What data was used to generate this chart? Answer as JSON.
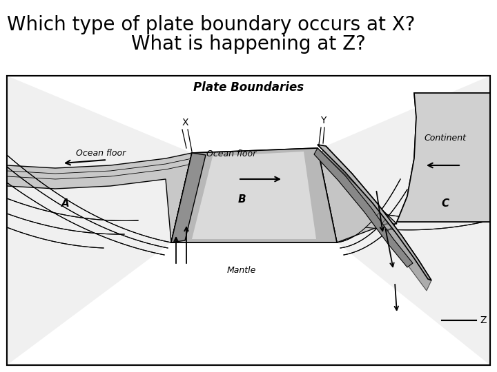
{
  "title1": "Which type of plate boundary occurs at X?",
  "title2": "What is happening at Z?",
  "diagram_title": "Plate Boundaries",
  "bg_color": "#ffffff",
  "text_color": "#000000",
  "title1_fontsize": 20,
  "title2_fontsize": 20,
  "diagram_title_fontsize": 12,
  "label_fontsize": 9,
  "letter_fontsize": 10
}
